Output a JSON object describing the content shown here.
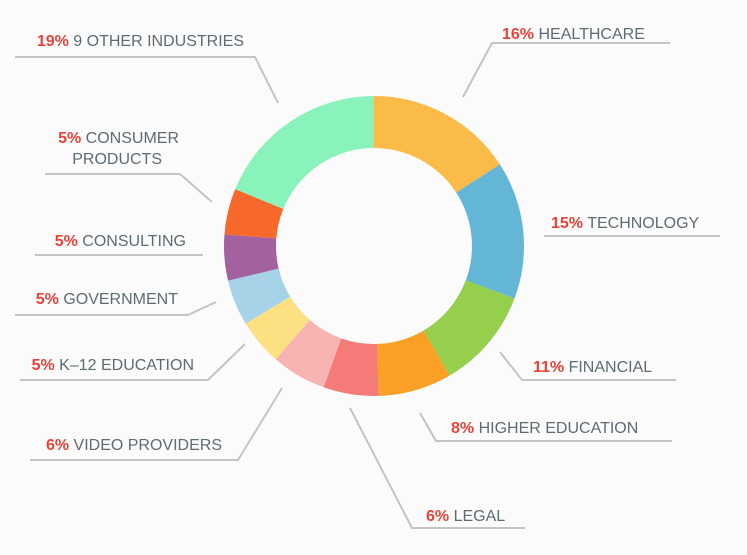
{
  "chart_data": {
    "type": "pie",
    "donut": true,
    "slices": [
      {
        "pct": "16%",
        "label": "HEALTHCARE",
        "value": 16,
        "color": "#fbbb48"
      },
      {
        "pct": "15%",
        "label": "TECHNOLOGY",
        "value": 15,
        "color": "#63b6d6"
      },
      {
        "pct": "11%",
        "label": "FINANCIAL",
        "value": 11,
        "color": "#95cf4b"
      },
      {
        "pct": "8%",
        "label": "HIGHER EDUCATION",
        "value": 8,
        "color": "#f9a025"
      },
      {
        "pct": "6%",
        "label": "LEGAL",
        "value": 6,
        "color": "#f57b79"
      },
      {
        "pct": "6%",
        "label": "VIDEO PROVIDERS",
        "value": 6,
        "color": "#f8b3b3"
      },
      {
        "pct": "5%",
        "label": "K–12 EDUCATION",
        "value": 5,
        "color": "#fde082"
      },
      {
        "pct": "5%",
        "label": "GOVERNMENT",
        "value": 5,
        "color": "#a7d3e8"
      },
      {
        "pct": "5%",
        "label": "CONSULTING",
        "value": 5,
        "color": "#a461a0"
      },
      {
        "pct": "5%",
        "label": [
          "CONSUMER",
          "PRODUCTS"
        ],
        "value": 5,
        "color": "#f7692b"
      },
      {
        "pct": "19%",
        "label": "9 OTHER INDUSTRIES",
        "value": 19,
        "color": "#89f3bb"
      }
    ],
    "line_color": "#c4c4c4"
  }
}
